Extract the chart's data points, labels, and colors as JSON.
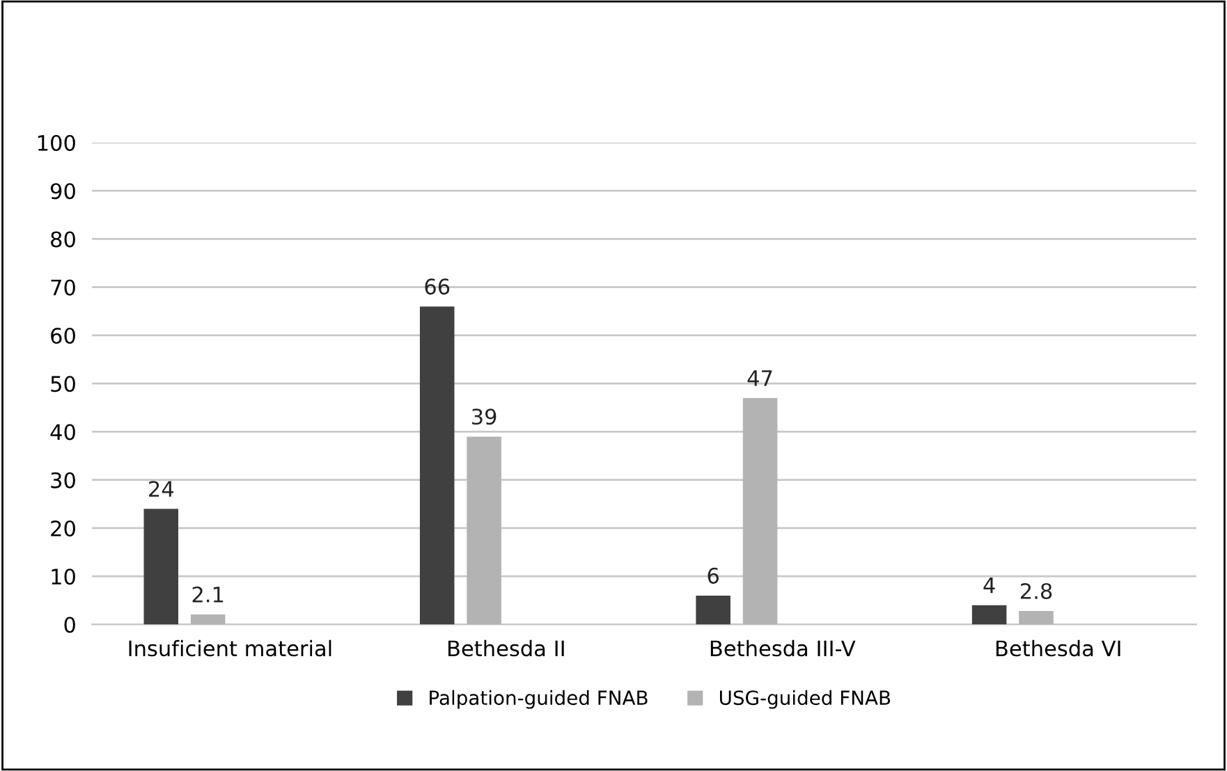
{
  "chart_data": {
    "type": "bar",
    "categories": [
      "Insuficient material",
      "Bethesda II",
      "Bethesda III-V",
      "Bethesda VI"
    ],
    "series": [
      {
        "name": "Palpation-guided FNAB",
        "color": "#404040",
        "values": [
          24,
          66,
          6,
          4
        ]
      },
      {
        "name": "USG-guided FNAB",
        "color": "#b3b3b3",
        "values": [
          2.1,
          39,
          47,
          2.8
        ]
      }
    ],
    "ylim": [
      0,
      100
    ],
    "yticks": [
      0,
      10,
      20,
      30,
      40,
      50,
      60,
      70,
      80,
      90,
      100
    ],
    "grid": "y",
    "legend": "bottom",
    "data_labels": true
  }
}
